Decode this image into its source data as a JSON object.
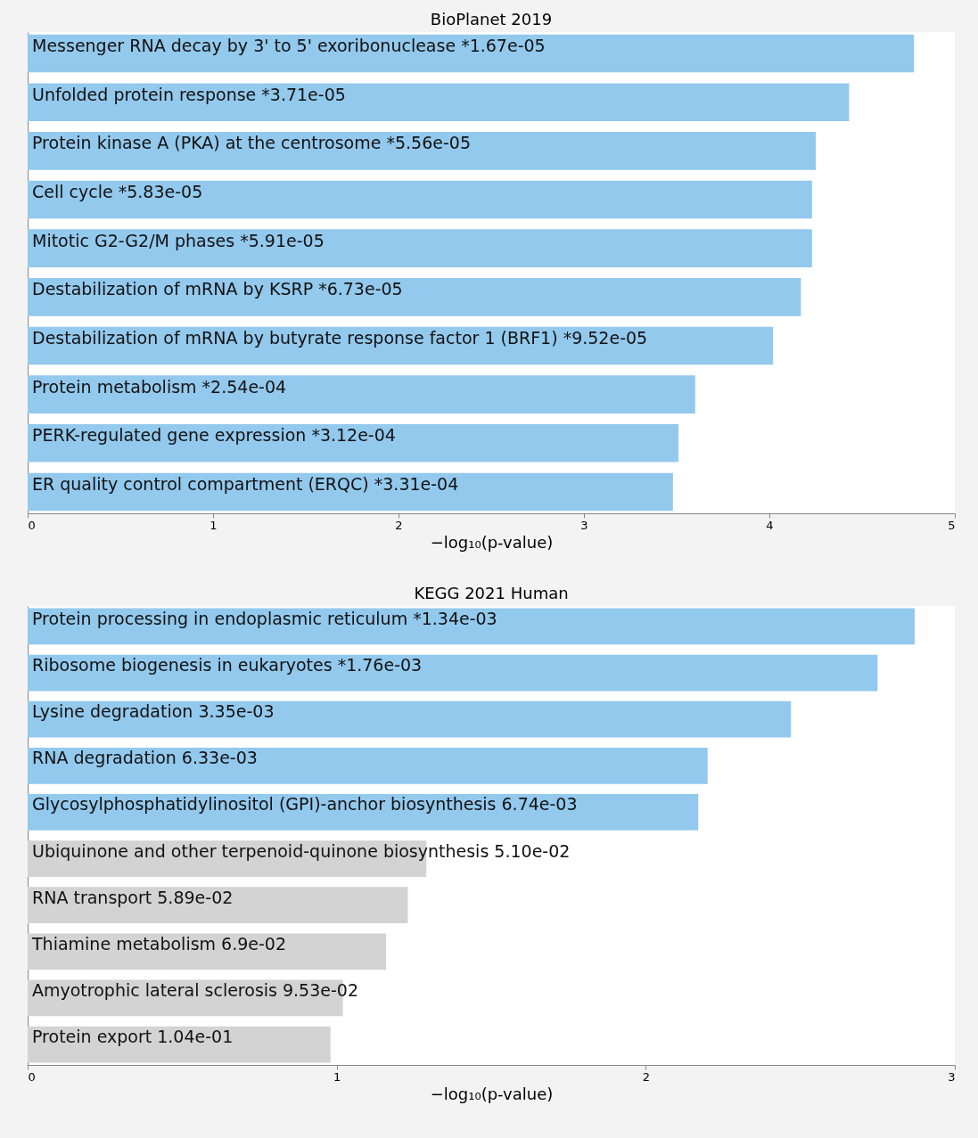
{
  "chart_data": [
    {
      "type": "bar",
      "orientation": "horizontal",
      "title": "BioPlanet 2019",
      "xlabel": "−log₁₀(p-value)",
      "categories": [
        "Messenger RNA decay by 3' to 5' exoribonuclease  *1.67e-05",
        "Unfolded protein response  *3.71e-05",
        "Protein kinase A (PKA) at the centrosome  *5.56e-05",
        "Cell cycle  *5.83e-05",
        "Mitotic G2-G2/M phases  *5.91e-05",
        "Destabilization of mRNA by KSRP  *6.73e-05",
        "Destabilization of mRNA by butyrate response factor 1 (BRF1)  *9.52e-05",
        "Protein metabolism  *2.54e-04",
        "PERK-regulated gene expression  *3.12e-04",
        "ER quality control compartment (ERQC)  *3.31e-04"
      ],
      "values": [
        4.78,
        4.43,
        4.25,
        4.23,
        4.23,
        4.17,
        4.02,
        3.6,
        3.51,
        3.48
      ],
      "colors": [
        "#93c9ed",
        "#93c9ed",
        "#93c9ed",
        "#93c9ed",
        "#93c9ed",
        "#93c9ed",
        "#93c9ed",
        "#93c9ed",
        "#93c9ed",
        "#93c9ed"
      ],
      "xlim": [
        0,
        5
      ],
      "xticks": [
        0,
        1,
        2,
        3,
        4,
        5
      ]
    },
    {
      "type": "bar",
      "orientation": "horizontal",
      "title": "KEGG 2021 Human",
      "xlabel": "−log₁₀(p-value)",
      "categories": [
        "Protein processing in endoplasmic reticulum  *1.34e-03",
        "Ribosome biogenesis in eukaryotes  *1.76e-03",
        "Lysine degradation  3.35e-03",
        "RNA degradation  6.33e-03",
        "Glycosylphosphatidylinositol (GPI)-anchor biosynthesis  6.74e-03",
        "Ubiquinone and other terpenoid-quinone biosynthesis  5.10e-02",
        "RNA transport  5.89e-02",
        "Thiamine metabolism  6.9e-02",
        "Amyotrophic lateral sclerosis  9.53e-02",
        "Protein export  1.04e-01"
      ],
      "values": [
        2.87,
        2.75,
        2.47,
        2.2,
        2.17,
        1.29,
        1.23,
        1.16,
        1.02,
        0.98
      ],
      "colors": [
        "#93c9ed",
        "#93c9ed",
        "#93c9ed",
        "#93c9ed",
        "#93c9ed",
        "#d3d3d3",
        "#d3d3d3",
        "#d3d3d3",
        "#d3d3d3",
        "#d3d3d3"
      ],
      "xlim": [
        0,
        3
      ],
      "xticks": [
        0,
        1,
        2,
        3
      ]
    }
  ]
}
